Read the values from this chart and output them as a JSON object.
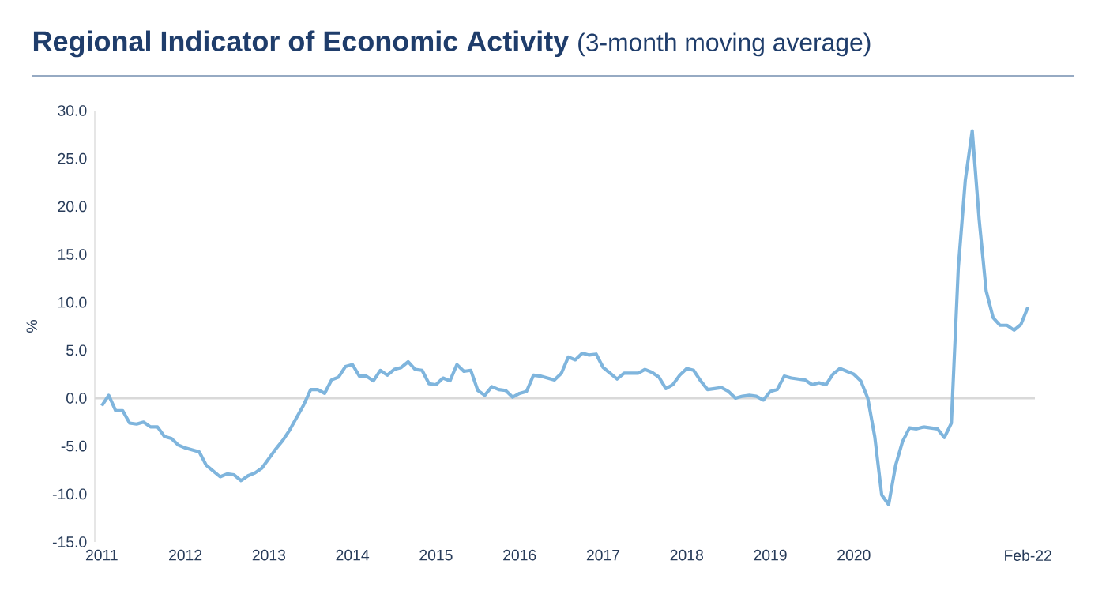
{
  "chart_data": {
    "type": "line",
    "title": "Regional Indicator of Economic Activity",
    "subtitle": "(3-month moving average)",
    "ylabel": "%",
    "x": [
      "2011-01",
      "2011-02",
      "2011-03",
      "2011-04",
      "2011-05",
      "2011-06",
      "2011-07",
      "2011-08",
      "2011-09",
      "2011-10",
      "2011-11",
      "2011-12",
      "2012-01",
      "2012-02",
      "2012-03",
      "2012-04",
      "2012-05",
      "2012-06",
      "2012-07",
      "2012-08",
      "2012-09",
      "2012-10",
      "2012-11",
      "2012-12",
      "2013-01",
      "2013-02",
      "2013-03",
      "2013-04",
      "2013-05",
      "2013-06",
      "2013-07",
      "2013-08",
      "2013-09",
      "2013-10",
      "2013-11",
      "2013-12",
      "2014-01",
      "2014-02",
      "2014-03",
      "2014-04",
      "2014-05",
      "2014-06",
      "2014-07",
      "2014-08",
      "2014-09",
      "2014-10",
      "2014-11",
      "2014-12",
      "2015-01",
      "2015-02",
      "2015-03",
      "2015-04",
      "2015-05",
      "2015-06",
      "2015-07",
      "2015-08",
      "2015-09",
      "2015-10",
      "2015-11",
      "2015-12",
      "2016-01",
      "2016-02",
      "2016-03",
      "2016-04",
      "2016-05",
      "2016-06",
      "2016-07",
      "2016-08",
      "2016-09",
      "2016-10",
      "2016-11",
      "2016-12",
      "2017-01",
      "2017-02",
      "2017-03",
      "2017-04",
      "2017-05",
      "2017-06",
      "2017-07",
      "2017-08",
      "2017-09",
      "2017-10",
      "2017-11",
      "2017-12",
      "2018-01",
      "2018-02",
      "2018-03",
      "2018-04",
      "2018-05",
      "2018-06",
      "2018-07",
      "2018-08",
      "2018-09",
      "2018-10",
      "2018-11",
      "2018-12",
      "2019-01",
      "2019-02",
      "2019-03",
      "2019-04",
      "2019-05",
      "2019-06",
      "2019-07",
      "2019-08",
      "2019-09",
      "2019-10",
      "2019-11",
      "2019-12",
      "2020-01",
      "2020-02",
      "2020-03",
      "2020-04",
      "2020-05",
      "2020-06",
      "2020-07",
      "2020-08",
      "2020-09",
      "2020-10",
      "2020-11",
      "2020-12",
      "2021-01",
      "2021-02",
      "2021-03",
      "2021-04",
      "2021-05",
      "2021-06",
      "2021-07",
      "2021-08",
      "2021-09",
      "2021-10",
      "2021-11",
      "2021-12",
      "2022-01",
      "2022-02"
    ],
    "series": [
      {
        "color": "#7fb5dd",
        "values": [
          -0.8,
          0.3,
          -1.3,
          -1.3,
          -2.6,
          -2.7,
          -2.5,
          -3.0,
          -3.0,
          -4.0,
          -4.2,
          -4.9,
          -5.2,
          -5.4,
          -5.6,
          -7.0,
          -7.6,
          -8.2,
          -7.9,
          -8.0,
          -8.6,
          -8.1,
          -7.8,
          -7.3,
          -6.3,
          -5.3,
          -4.4,
          -3.3,
          -2.0,
          -0.7,
          0.9,
          0.9,
          0.5,
          1.9,
          2.2,
          3.3,
          3.5,
          2.3,
          2.3,
          1.8,
          2.9,
          2.4,
          3.0,
          3.2,
          3.8,
          3.0,
          2.9,
          1.5,
          1.4,
          2.1,
          1.8,
          3.5,
          2.8,
          2.9,
          0.8,
          0.3,
          1.2,
          0.9,
          0.8,
          0.1,
          0.5,
          0.7,
          2.4,
          2.3,
          2.1,
          1.9,
          2.6,
          4.3,
          4.0,
          4.7,
          4.5,
          4.6,
          3.2,
          2.6,
          2.0,
          2.6,
          2.6,
          2.6,
          3.0,
          2.7,
          2.2,
          1.0,
          1.4,
          2.4,
          3.1,
          2.9,
          1.8,
          0.9,
          1.0,
          1.1,
          0.7,
          0.0,
          0.2,
          0.3,
          0.2,
          -0.2,
          0.7,
          0.9,
          2.3,
          2.1,
          2.0,
          1.9,
          1.4,
          1.6,
          1.4,
          2.5,
          3.1,
          2.8,
          2.5,
          1.8,
          0.0,
          -4.0,
          -10.1,
          -11.1,
          -7.0,
          -4.5,
          -3.1,
          -3.2,
          -3.0,
          -3.1,
          -3.2,
          -4.1,
          -2.6,
          13.6,
          22.7,
          27.9,
          18.6,
          11.2,
          8.4,
          7.6,
          7.6,
          7.1,
          7.7,
          9.5
        ]
      }
    ],
    "xlim": [
      "2010-12",
      "2022-03"
    ],
    "xticks": [
      {
        "value": "2011-01",
        "label": "2011"
      },
      {
        "value": "2012-01",
        "label": "2012"
      },
      {
        "value": "2013-01",
        "label": "2013"
      },
      {
        "value": "2014-01",
        "label": "2014"
      },
      {
        "value": "2015-01",
        "label": "2015"
      },
      {
        "value": "2016-01",
        "label": "2016"
      },
      {
        "value": "2017-01",
        "label": "2017"
      },
      {
        "value": "2018-01",
        "label": "2018"
      },
      {
        "value": "2019-01",
        "label": "2019"
      },
      {
        "value": "2020-01",
        "label": "2020"
      },
      {
        "value": "2022-02",
        "label": "Feb-22"
      }
    ],
    "ylim": [
      -15,
      30
    ],
    "yticks": [
      {
        "value": -15,
        "label": "-15.0"
      },
      {
        "value": -10,
        "label": "-10.0"
      },
      {
        "value": -5,
        "label": "-5.0"
      },
      {
        "value": 0,
        "label": "0.0"
      },
      {
        "value": 5,
        "label": "5.0"
      },
      {
        "value": 10,
        "label": "10.0"
      },
      {
        "value": 15,
        "label": "15.0"
      },
      {
        "value": 20,
        "label": "20.0"
      },
      {
        "value": 25,
        "label": "25.0"
      },
      {
        "value": 30,
        "label": "30.0"
      }
    ],
    "ref_lines": [
      {
        "axis": "y",
        "value": 0,
        "color": "#d9d9d9"
      }
    ],
    "grid": false
  }
}
